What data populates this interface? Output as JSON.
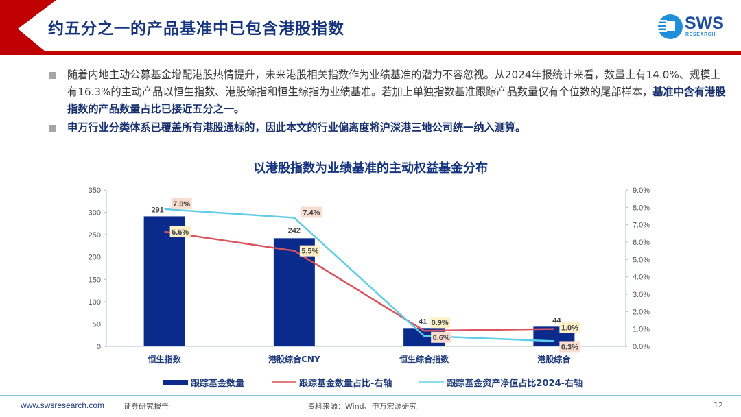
{
  "header": {
    "title": "约五分之一的产品基准中已包含港股指数",
    "logo": {
      "name": "SWS",
      "subtitle": "RESEARCH"
    },
    "accent_color": "#c00000",
    "title_color": "#16357e"
  },
  "bullets": [
    {
      "text_plain": "随着内地主动公募基金增配港股热情提升，未来港股相关指数作为业绩基准的潜力不容忽视。从2024年报统计来看，数量上有14.0%、规模上有16.3%的主动产品以恒生指数、港股综指和恒生综指为业绩基准。若加上单独指数基准跟踪产品数量仅有个位数的尾部样本，",
      "text_bold": "基准中含有港股指数的产品数量占比已接近五分之一。"
    },
    {
      "text_plain": "",
      "text_bold": "申万行业分类体系已覆盖所有港股通标的，因此本文的行业偏离度将沪深港三地公司统一纳入测算。"
    }
  ],
  "chart_data": {
    "type": "bar",
    "title": "以港股指数为业绩基准的主动权益基金分布",
    "categories": [
      "恒生指数",
      "港股综合CNY",
      "恒生综合指数",
      "港股综合"
    ],
    "series": [
      {
        "name": "跟踪基金数量",
        "type": "bar",
        "axis": "left",
        "color": "#0a2a8c",
        "values": [
          291,
          242,
          41,
          44
        ]
      },
      {
        "name": "跟踪基金数量占比-右轴",
        "type": "line",
        "axis": "right",
        "color": "#d9545e",
        "values": [
          6.6,
          5.5,
          0.9,
          1.0
        ],
        "labels": [
          "6.6%",
          "5.5%",
          "0.9%",
          "1.0%"
        ]
      },
      {
        "name": "跟踪基金资产净值占比2024-右轴",
        "type": "line",
        "axis": "right",
        "color": "#5fcde8",
        "values": [
          7.9,
          7.4,
          0.6,
          0.3
        ],
        "labels": [
          "7.9%",
          "7.4%",
          "0.6%",
          "0.3%"
        ]
      }
    ],
    "left_axis": {
      "min": 0,
      "max": 350,
      "ticks": [
        "0",
        "50",
        "100",
        "150",
        "200",
        "250",
        "300",
        "350"
      ]
    },
    "right_axis": {
      "min": 0,
      "max": 9,
      "ticks": [
        "0.0%",
        "1.0%",
        "2.0%",
        "3.0%",
        "4.0%",
        "5.0%",
        "6.0%",
        "7.0%",
        "8.0%",
        "9.0%"
      ]
    },
    "bar_labels": [
      "291",
      "242",
      "41",
      "44"
    ],
    "grid": false,
    "legend_position": "bottom"
  },
  "legend": [
    "跟踪基金数量",
    "跟踪基金数量占比-右轴",
    "跟踪基金资产净值占比2024-右轴"
  ],
  "footer": {
    "url": "www.swsresearch.com",
    "doc_type": "证券研究报告",
    "source": "资料来源：Wind、申万宏源研究",
    "page": "12"
  }
}
